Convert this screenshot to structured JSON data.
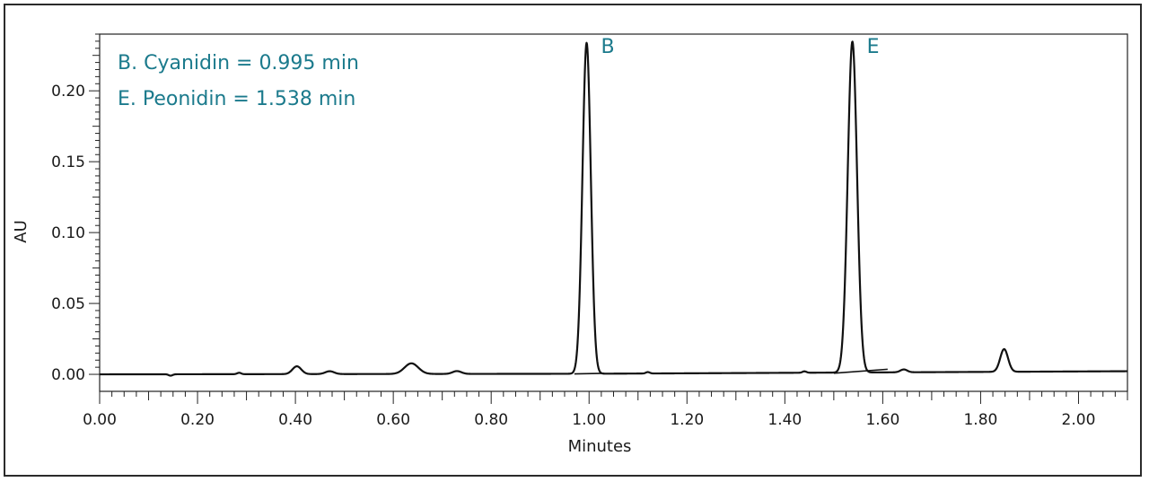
{
  "chart_data": {
    "type": "line",
    "title": "",
    "xlabel": "Minutes",
    "ylabel": "AU",
    "xlim": [
      0.0,
      2.1
    ],
    "ylim": [
      -0.012,
      0.24
    ],
    "x_ticks": [
      "0.00",
      "0.20",
      "0.40",
      "0.60",
      "0.80",
      "1.00",
      "1.20",
      "1.40",
      "1.60",
      "1.80",
      "2.00"
    ],
    "y_ticks": [
      "0.00",
      "0.05",
      "0.10",
      "0.15",
      "0.20"
    ],
    "grid": false,
    "legend": {
      "placement": "top-left",
      "entries": [
        "B. Cyanidin = 0.995 min",
        "E. Peonidin = 1.538 min"
      ]
    },
    "annotations": [
      {
        "text": "B",
        "x": 0.995,
        "y": 0.233
      },
      {
        "text": "E",
        "x": 1.538,
        "y": 0.233
      }
    ],
    "colors": {
      "trace": "#111111",
      "annotation": "#1b7a8c",
      "axis": "#222222"
    },
    "series": [
      {
        "peaks": [
          {
            "rt": 0.145,
            "height": -0.001,
            "width": 0.004
          },
          {
            "rt": 0.285,
            "height": 0.001,
            "width": 0.004
          },
          {
            "rt": 0.403,
            "height": 0.0055,
            "width": 0.009
          },
          {
            "rt": 0.47,
            "height": 0.002,
            "width": 0.009
          },
          {
            "rt": 0.637,
            "height": 0.0075,
            "width": 0.014
          },
          {
            "rt": 0.73,
            "height": 0.002,
            "width": 0.009
          },
          {
            "rt": 0.995,
            "height": 0.2335,
            "width": 0.0085
          },
          {
            "rt": 1.12,
            "height": 0.001,
            "width": 0.004
          },
          {
            "rt": 1.44,
            "height": 0.001,
            "width": 0.004
          },
          {
            "rt": 1.538,
            "height": 0.2335,
            "width": 0.0095
          },
          {
            "rt": 1.643,
            "height": 0.002,
            "width": 0.007
          },
          {
            "rt": 1.848,
            "height": 0.016,
            "width": 0.008
          }
        ],
        "baseline": [
          [
            0.0,
            0.0
          ],
          [
            1.0,
            0.0004
          ],
          [
            2.1,
            0.0022
          ]
        ]
      }
    ],
    "integration_baselines": [
      [
        [
          0.97,
          0.0003
        ],
        [
          1.03,
          0.0007
        ]
      ],
      [
        [
          1.5,
          0.0008
        ],
        [
          1.61,
          0.0036
        ]
      ]
    ]
  }
}
